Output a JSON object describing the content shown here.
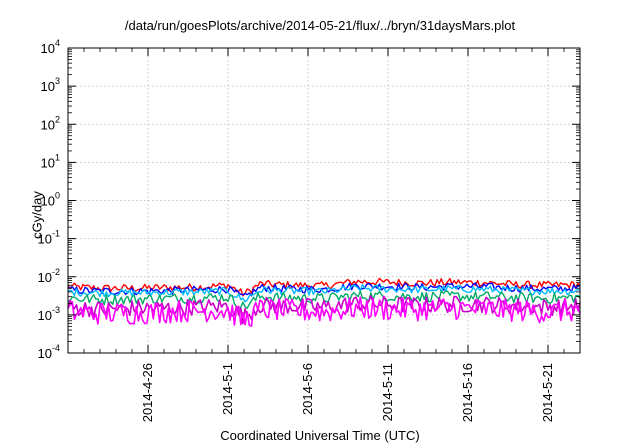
{
  "chart_data": {
    "type": "line",
    "title": "/data/run/goesPlots/archive/2014-05-21/flux/../bryn/31daysMars.plot",
    "xlabel": "Coordinated Universal Time (UTC)",
    "ylabel": "cGy/day",
    "yscale": "log",
    "ylim": [
      0.0001,
      10000
    ],
    "xlim": [
      "2014-04-21",
      "2014-05-23"
    ],
    "grid": true,
    "y_ticks": [
      {
        "base": "10",
        "exp": "-4"
      },
      {
        "base": "10",
        "exp": "-3"
      },
      {
        "base": "10",
        "exp": "-2"
      },
      {
        "base": "10",
        "exp": "-1"
      },
      {
        "base": "10",
        "exp": "0"
      },
      {
        "base": "10",
        "exp": "1"
      },
      {
        "base": "10",
        "exp": "2"
      },
      {
        "base": "10",
        "exp": "3"
      },
      {
        "base": "10",
        "exp": "4"
      }
    ],
    "x_ticks": [
      "2014-4-26",
      "2014-5-1",
      "2014-5-6",
      "2014-5-11",
      "2014-5-16",
      "2014-5-21"
    ],
    "x": [
      "2014-04-21",
      "2014-04-23",
      "2014-04-25",
      "2014-04-27",
      "2014-04-29",
      "2014-05-01",
      "2014-05-02",
      "2014-05-03",
      "2014-05-05",
      "2014-05-07",
      "2014-05-09",
      "2014-05-11",
      "2014-05-13",
      "2014-05-15",
      "2014-05-17",
      "2014-05-19",
      "2014-05-21",
      "2014-05-23"
    ],
    "series": [
      {
        "color": "#ff0000",
        "values": [
          0.0055,
          0.005,
          0.005,
          0.0052,
          0.0053,
          0.006,
          0.0035,
          0.0065,
          0.006,
          0.0058,
          0.0075,
          0.0072,
          0.0068,
          0.0072,
          0.007,
          0.0062,
          0.006,
          0.0062
        ]
      },
      {
        "color": "#0000ff",
        "values": [
          0.0045,
          0.0042,
          0.0042,
          0.0043,
          0.0045,
          0.0048,
          0.0028,
          0.0052,
          0.0048,
          0.0047,
          0.0058,
          0.0056,
          0.0053,
          0.0056,
          0.0055,
          0.005,
          0.0048,
          0.005
        ]
      },
      {
        "color": "#00bbff",
        "values": [
          0.004,
          0.0038,
          0.0038,
          0.0039,
          0.004,
          0.0042,
          0.0024,
          0.0045,
          0.0042,
          0.0041,
          0.005,
          0.0048,
          0.0046,
          0.0048,
          0.0047,
          0.0043,
          0.0042,
          0.0043
        ]
      },
      {
        "color": "#00aa66",
        "values": [
          0.0028,
          0.0025,
          0.0026,
          0.0027,
          0.0028,
          0.0029,
          0.0016,
          0.003,
          0.0028,
          0.0027,
          0.0032,
          0.0031,
          0.003,
          0.0031,
          0.003,
          0.0028,
          0.0027,
          0.0029
        ]
      },
      {
        "color": "#cc00cc",
        "values": [
          0.0016,
          0.0014,
          0.0015,
          0.0015,
          0.0016,
          0.0017,
          0.0009,
          0.0018,
          0.0017,
          0.0016,
          0.002,
          0.0019,
          0.0018,
          0.0019,
          0.0019,
          0.0017,
          0.0016,
          0.0017
        ]
      },
      {
        "color": "#ff00ff",
        "values": [
          0.0012,
          0.0011,
          0.0011,
          0.0012,
          0.0013,
          0.0013,
          0.0007,
          0.0014,
          0.0013,
          0.0012,
          0.0015,
          0.0014,
          0.0014,
          0.0015,
          0.0014,
          0.0013,
          0.0012,
          0.0013
        ]
      }
    ]
  }
}
